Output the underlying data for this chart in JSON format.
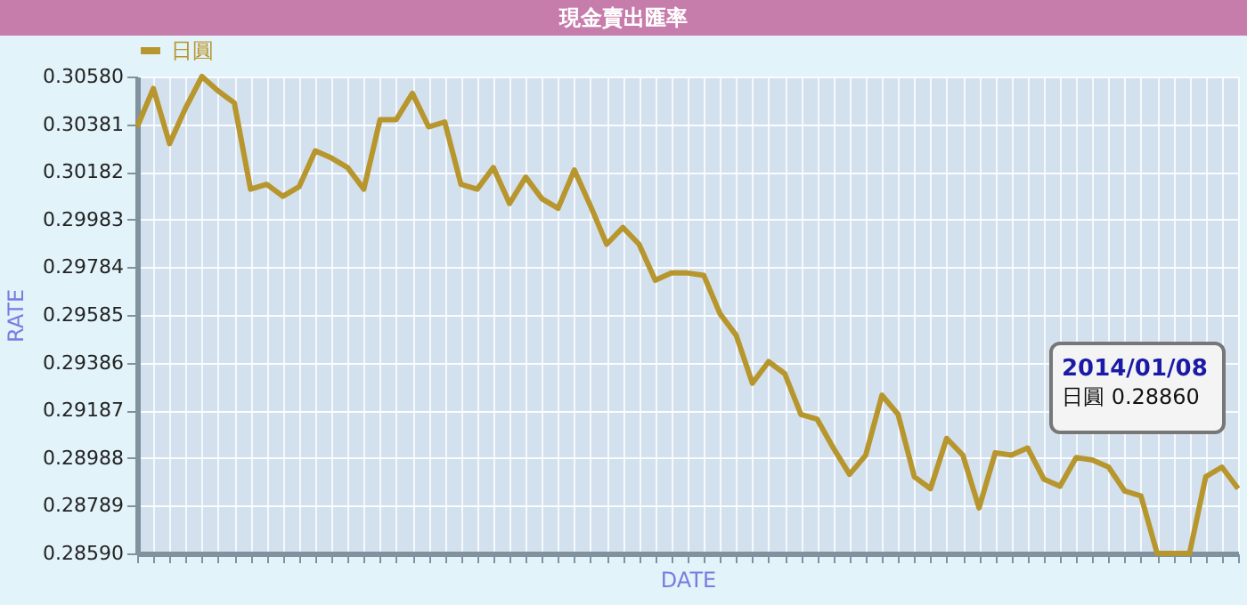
{
  "chart_data": {
    "type": "line",
    "title": "現金賣出匯率",
    "xlabel": "DATE",
    "ylabel": "RATE",
    "categories": [
      null,
      null,
      null,
      null,
      null,
      null,
      null,
      null,
      null,
      null,
      null,
      null,
      null,
      null,
      null,
      null,
      null,
      null,
      null,
      null,
      null,
      null,
      null,
      null,
      null,
      null,
      null,
      null,
      null,
      null,
      null,
      null,
      null,
      null,
      null,
      null,
      null,
      null,
      null,
      null,
      null,
      null,
      null,
      null,
      null,
      null,
      null,
      null,
      null,
      null,
      null,
      null,
      null,
      null,
      null,
      null,
      null,
      null,
      null,
      null,
      null,
      null,
      null,
      null,
      null,
      null,
      null,
      null,
      null
    ],
    "series": [
      {
        "name": "日圓",
        "color": "#b8962e",
        "values": [
          0.3037,
          0.3053,
          0.303,
          0.3045,
          0.3058,
          0.3052,
          0.3047,
          0.3011,
          0.3013,
          0.3008,
          0.3012,
          0.3027,
          0.3024,
          0.302,
          0.3011,
          0.304,
          0.304,
          0.3051,
          0.3037,
          0.3039,
          0.3013,
          0.3011,
          0.302,
          0.3005,
          0.3016,
          0.3007,
          0.3003,
          0.3019,
          0.3004,
          0.2988,
          0.2995,
          0.2988,
          0.2973,
          0.2976,
          0.2976,
          0.2975,
          0.2959,
          0.295,
          0.293,
          0.2939,
          0.2934,
          0.2917,
          0.2915,
          0.2903,
          0.2892,
          0.29,
          0.2925,
          0.2917,
          0.2891,
          0.2886,
          0.2907,
          0.29,
          0.2878,
          0.2901,
          0.29,
          0.2903,
          0.289,
          0.2887,
          0.2899,
          0.2898,
          0.2895,
          0.2885,
          0.2883,
          0.2859,
          0.2859,
          0.2859,
          0.2891,
          0.2895,
          0.2886
        ]
      }
    ],
    "ylim": [
      0.2859,
      0.3058
    ],
    "yticks": [
      {
        "value": 0.2859,
        "label": "0.28590"
      },
      0.28789,
      0.28988,
      0.29187,
      0.29386,
      0.29585,
      0.29784,
      0.29983,
      0.30182,
      0.30381,
      {
        "value": 0.3058,
        "label": "0.30580"
      }
    ],
    "annotations": [
      "2014/01/08\n日圓 0.28860"
    ],
    "grid": true,
    "legend": "top left",
    "tick_labels": "y",
    "marker": "none",
    "line_style": "solid"
  }
}
